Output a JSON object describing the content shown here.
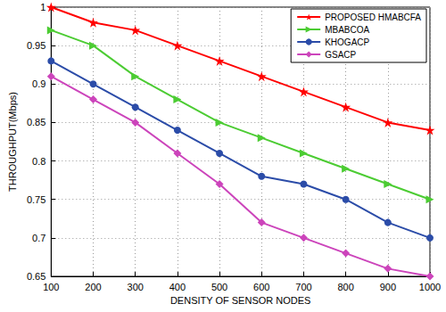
{
  "chart_data": {
    "type": "line",
    "x_label": "DENSITY OF SENSOR NODES",
    "y_label": "THROUGHPUT(Mbps)",
    "x": [
      100,
      200,
      300,
      400,
      500,
      600,
      700,
      800,
      900,
      1000
    ],
    "series": [
      {
        "name": "PROPOSED HMABCFA",
        "color": "#ff0000",
        "marker": "star",
        "values": [
          1.0,
          0.98,
          0.97,
          0.95,
          0.93,
          0.91,
          0.89,
          0.87,
          0.85,
          0.84
        ]
      },
      {
        "name": "MBABCOA",
        "color": "#4ccc33",
        "marker": "triangle",
        "values": [
          0.97,
          0.95,
          0.91,
          0.88,
          0.85,
          0.83,
          0.81,
          0.79,
          0.77,
          0.75
        ]
      },
      {
        "name": "KHOGACP",
        "color": "#2b4ca8",
        "marker": "circle",
        "values": [
          0.93,
          0.9,
          0.87,
          0.84,
          0.81,
          0.78,
          0.77,
          0.75,
          0.72,
          0.7
        ]
      },
      {
        "name": "GSACP",
        "color": "#cc44bb",
        "marker": "diamond",
        "values": [
          0.91,
          0.88,
          0.85,
          0.81,
          0.77,
          0.72,
          0.7,
          0.68,
          0.66,
          0.65
        ]
      }
    ],
    "xlim": [
      100,
      1000
    ],
    "xticks": [
      100,
      200,
      300,
      400,
      500,
      600,
      700,
      800,
      900,
      1000
    ],
    "ylim": [
      0.65,
      1
    ],
    "yticks": [
      0.65,
      0.7,
      0.75,
      0.8,
      0.85,
      0.9,
      0.95,
      1
    ],
    "grid": true,
    "legend": "upper right"
  }
}
